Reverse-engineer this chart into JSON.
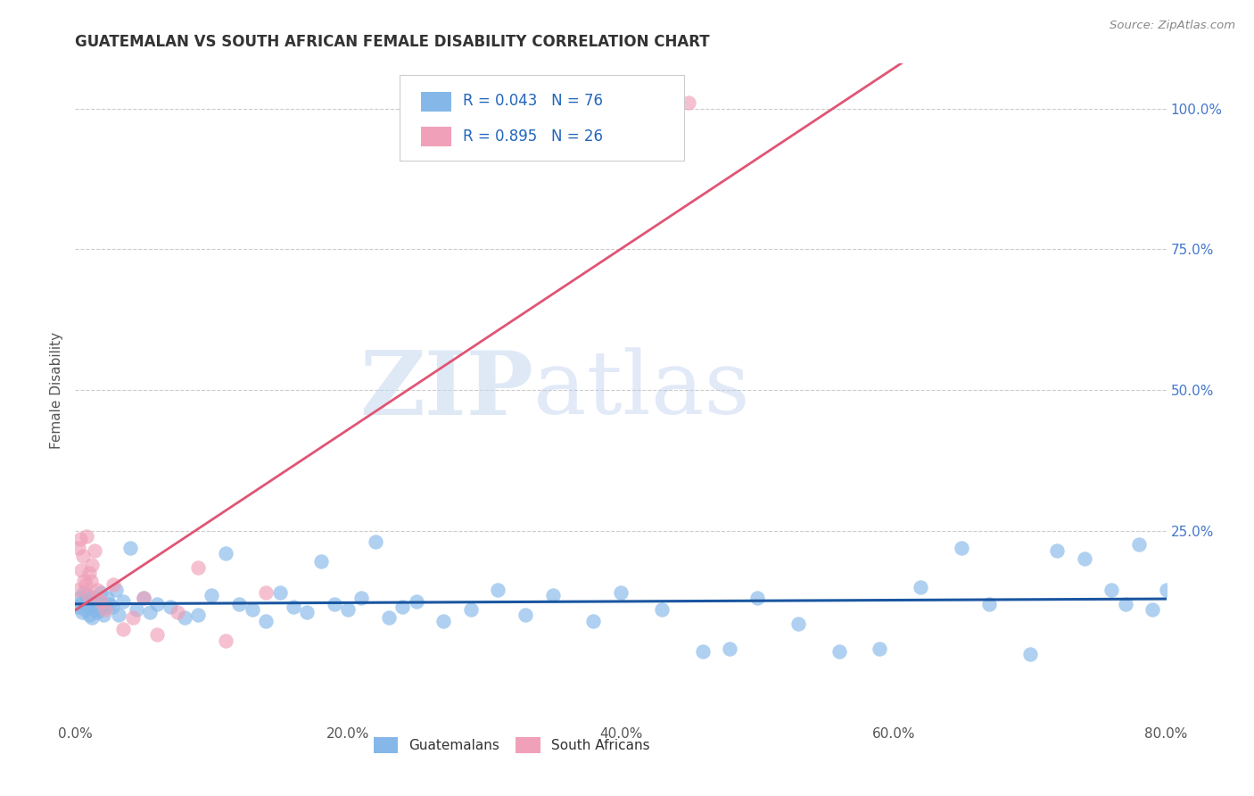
{
  "title": "GUATEMALAN VS SOUTH AFRICAN FEMALE DISABILITY CORRELATION CHART",
  "source": "Source: ZipAtlas.com",
  "ylabel": "Female Disability",
  "x_tick_labels": [
    "0.0%",
    "20.0%",
    "40.0%",
    "60.0%",
    "80.0%"
  ],
  "x_tick_positions": [
    0.0,
    20.0,
    40.0,
    60.0,
    80.0
  ],
  "y_tick_labels": [
    "100.0%",
    "75.0%",
    "50.0%",
    "25.0%"
  ],
  "y_tick_positions": [
    100.0,
    75.0,
    50.0,
    25.0
  ],
  "xlim": [
    0.0,
    80.0
  ],
  "ylim": [
    -8.0,
    108.0
  ],
  "guatemalan_color": "#85b8e8",
  "south_african_color": "#f0a0b8",
  "guatemalan_line_color": "#1a56a0",
  "south_african_line_color": "#e05575",
  "r_guatemalan": 0.043,
  "n_guatemalan": 76,
  "r_south_african": 0.895,
  "n_south_african": 26,
  "background_color": "#ffffff",
  "grid_color": "#cccccc",
  "legend_label_guatemalans": "Guatemalans",
  "legend_label_south_africans": "South Africans",
  "watermark_zip": "ZIP",
  "watermark_atlas": "atlas",
  "tick_label_color_x": "#555555",
  "tick_label_color_y": "#4477cc",
  "title_color": "#333333",
  "source_color": "#888888",
  "ylabel_color": "#555555",
  "guatemalan_x": [
    0.2,
    0.3,
    0.4,
    0.5,
    0.6,
    0.7,
    0.8,
    0.9,
    1.0,
    1.1,
    1.2,
    1.3,
    1.4,
    1.5,
    1.6,
    1.7,
    1.8,
    1.9,
    2.0,
    2.1,
    2.2,
    2.3,
    2.5,
    2.7,
    3.0,
    3.2,
    3.5,
    4.0,
    4.5,
    5.0,
    5.5,
    6.0,
    7.0,
    8.0,
    9.0,
    10.0,
    11.0,
    12.0,
    13.0,
    14.0,
    15.0,
    16.0,
    17.0,
    18.0,
    19.0,
    20.0,
    21.0,
    22.0,
    23.0,
    24.0,
    25.0,
    27.0,
    29.0,
    31.0,
    33.0,
    35.0,
    38.0,
    40.0,
    43.0,
    46.0,
    48.0,
    50.0,
    53.0,
    56.0,
    59.0,
    62.0,
    65.0,
    67.0,
    70.0,
    72.0,
    74.0,
    76.0,
    77.0,
    78.0,
    79.0,
    80.0
  ],
  "guatemalan_y": [
    11.5,
    13.0,
    12.0,
    10.5,
    14.0,
    11.0,
    13.5,
    12.5,
    10.0,
    11.5,
    9.5,
    12.0,
    13.0,
    11.0,
    10.5,
    12.5,
    11.0,
    14.0,
    12.0,
    10.0,
    11.5,
    13.0,
    12.0,
    11.5,
    14.5,
    10.0,
    12.5,
    22.0,
    11.0,
    13.0,
    10.5,
    12.0,
    11.5,
    9.5,
    10.0,
    13.5,
    21.0,
    12.0,
    11.0,
    9.0,
    14.0,
    11.5,
    10.5,
    19.5,
    12.0,
    11.0,
    13.0,
    23.0,
    9.5,
    11.5,
    12.5,
    9.0,
    11.0,
    14.5,
    10.0,
    13.5,
    9.0,
    14.0,
    11.0,
    3.5,
    4.0,
    13.0,
    8.5,
    3.5,
    4.0,
    15.0,
    22.0,
    12.0,
    3.0,
    21.5,
    20.0,
    14.5,
    12.0,
    22.5,
    11.0,
    14.5
  ],
  "south_african_x": [
    0.15,
    0.25,
    0.35,
    0.45,
    0.55,
    0.65,
    0.75,
    0.85,
    0.95,
    1.05,
    1.15,
    1.25,
    1.4,
    1.6,
    1.9,
    2.2,
    2.8,
    3.5,
    4.2,
    5.0,
    6.0,
    7.5,
    9.0,
    11.0,
    14.0,
    45.0
  ],
  "south_african_y": [
    14.5,
    22.0,
    23.5,
    18.0,
    20.5,
    16.0,
    15.5,
    24.0,
    13.5,
    17.5,
    16.0,
    19.0,
    21.5,
    14.5,
    12.5,
    11.0,
    15.5,
    7.5,
    9.5,
    13.0,
    6.5,
    10.5,
    18.5,
    5.5,
    14.0,
    101.0
  ]
}
